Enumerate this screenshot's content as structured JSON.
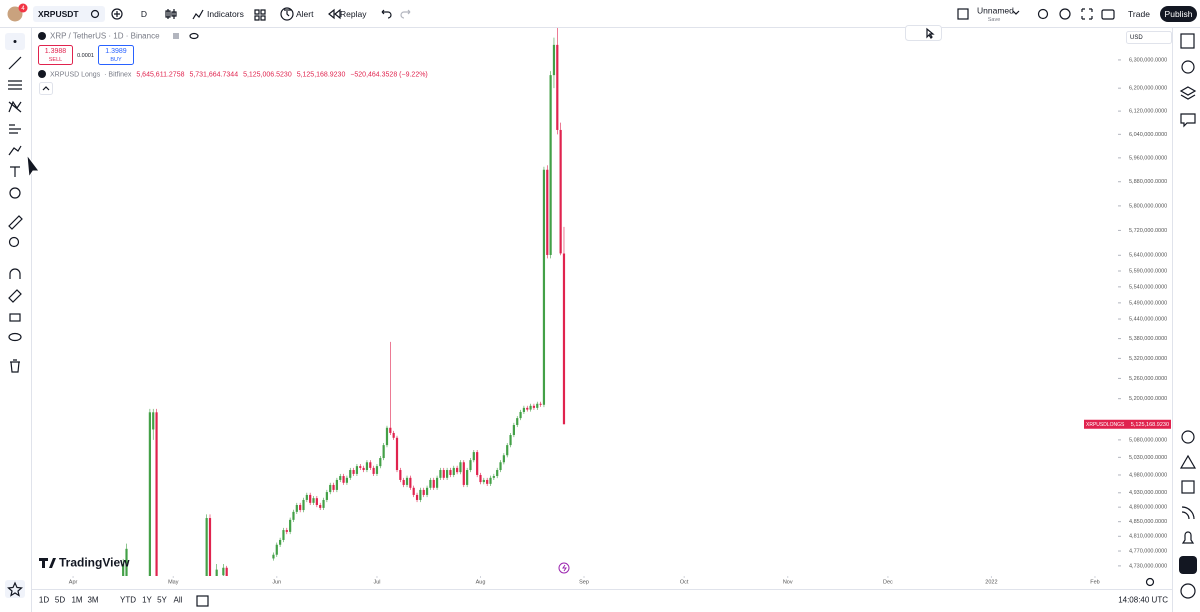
{
  "top_bar": {
    "notifications": "4",
    "symbol": "XRPUSDT",
    "interval": "D",
    "indicators": "Indicators",
    "alert": "Alert",
    "replay": "Replay",
    "layout_name": "Unnamed",
    "save": "Save",
    "trade": "Trade",
    "publish": "Publish"
  },
  "chart_legend": {
    "main": "XRP / TetherUS · 1D · Binance",
    "sell_price": "1.3988",
    "sell": "SELL",
    "spread": "0.0001",
    "buy_price": "1.3989",
    "buy": "BUY",
    "study_name": "XRPUSD Longs",
    "study_source": "· Bitfinex",
    "open": "5,645,611.2758",
    "high": "5,731,664.7344",
    "low": "5,125,006.5230",
    "close": "5,125,168.9230",
    "change": "−520,464.3528 (−9.22%)"
  },
  "price_axis": {
    "currency": "USD"
  },
  "watermark": "TradingView",
  "bottom_bar": {
    "ranges": [
      "1D",
      "5D",
      "1M",
      "3M",
      "YTD",
      "1Y",
      "5Y",
      "All"
    ],
    "clock": "14:08:40 UTC"
  },
  "chart_data": {
    "type": "candlestick",
    "log_scale": true,
    "grid": false,
    "up_color": "#43a047",
    "down_color": "#e0234e",
    "price_tag": "XRPUSDLONGS",
    "xlim": [
      78.7,
      403.9
    ],
    "xticks": [
      {
        "value": 91,
        "label": "Apr"
      },
      {
        "value": 121,
        "label": "May"
      },
      {
        "value": 152,
        "label": "Jun"
      },
      {
        "value": 182,
        "label": "Jul"
      },
      {
        "value": 213,
        "label": "Aug"
      },
      {
        "value": 244,
        "label": "Sep"
      },
      {
        "value": 274,
        "label": "Oct"
      },
      {
        "value": 305,
        "label": "Nov"
      },
      {
        "value": 335,
        "label": "Dec"
      },
      {
        "value": 366,
        "label": "2022"
      },
      {
        "value": 397,
        "label": "Feb"
      }
    ],
    "ylim": [
      4703000,
      6415000
    ],
    "yticks": [
      {
        "value": 6300000,
        "label": "6,300,000.0000"
      },
      {
        "value": 6200000,
        "label": "6,200,000.0000"
      },
      {
        "value": 6120000,
        "label": "6,120,000.0000"
      },
      {
        "value": 6040000,
        "label": "6,040,000.0000"
      },
      {
        "value": 5960000,
        "label": "5,960,000.0000"
      },
      {
        "value": 5880000,
        "label": "5,880,000.0000"
      },
      {
        "value": 5800000,
        "label": "5,800,000.0000"
      },
      {
        "value": 5720000,
        "label": "5,720,000.0000"
      },
      {
        "value": 5640000,
        "label": "5,640,000.0000"
      },
      {
        "value": 5590000,
        "label": "5,590,000.0000"
      },
      {
        "value": 5540000,
        "label": "5,540,000.0000"
      },
      {
        "value": 5490000,
        "label": "5,490,000.0000"
      },
      {
        "value": 5440000,
        "label": "5,440,000.0000"
      },
      {
        "value": 5380000,
        "label": "5,380,000.0000"
      },
      {
        "value": 5320000,
        "label": "5,320,000.0000"
      },
      {
        "value": 5260000,
        "label": "5,260,000.0000"
      },
      {
        "value": 5200000,
        "label": "5,200,000.0000"
      },
      {
        "value": 5080000,
        "label": "5,080,000.0000"
      },
      {
        "value": 5030000,
        "label": "5,030,000.0000"
      },
      {
        "value": 4980000,
        "label": "4,980,000.0000"
      },
      {
        "value": 4930000,
        "label": "4,930,000.0000"
      },
      {
        "value": 4890000,
        "label": "4,890,000.0000"
      },
      {
        "value": 4850000,
        "label": "4,850,000.0000"
      },
      {
        "value": 4810000,
        "label": "4,810,000.0000"
      },
      {
        "value": 4770000,
        "label": "4,770,000.0000"
      },
      {
        "value": 4730000,
        "label": "4,730,000.0000"
      }
    ],
    "x": [
      106,
      107,
      114,
      115,
      116,
      131,
      132,
      134,
      136,
      137,
      151,
      152,
      153,
      154,
      155,
      156,
      157,
      158,
      159,
      160,
      161,
      162,
      163,
      164,
      165,
      166,
      167,
      168,
      169,
      170,
      171,
      172,
      173,
      174,
      175,
      176,
      177,
      178,
      179,
      180,
      181,
      182,
      183,
      184,
      185,
      186,
      187,
      188,
      189,
      190,
      191,
      192,
      193,
      194,
      195,
      196,
      197,
      198,
      199,
      200,
      201,
      202,
      203,
      204,
      205,
      206,
      207,
      208,
      209,
      210,
      211,
      212,
      213,
      214,
      215,
      216,
      217,
      218,
      219,
      220,
      221,
      222,
      223,
      224,
      225,
      226,
      227,
      228,
      229,
      230,
      231,
      232,
      233,
      234,
      235,
      236,
      237,
      238
    ],
    "open": [
      4640000,
      4650000,
      4650000,
      5110000,
      5160000,
      4650000,
      4860000,
      4700000,
      4705000,
      4725000,
      4750000,
      4760000,
      4787000,
      4800000,
      4827000,
      4822000,
      4855000,
      4877000,
      4896000,
      4882000,
      4910000,
      4924000,
      4902000,
      4915000,
      4896000,
      4888000,
      4910000,
      4932000,
      4952000,
      4938000,
      4966000,
      4977000,
      4958000,
      4972000,
      4994000,
      4983000,
      5005000,
      5000000,
      4994000,
      5016000,
      5000000,
      4983000,
      5005000,
      5028000,
      5065000,
      5115000,
      5100000,
      5086000,
      4994000,
      4966000,
      4952000,
      4972000,
      4944000,
      4924000,
      4910000,
      4938000,
      4924000,
      4944000,
      4966000,
      4944000,
      4972000,
      4994000,
      4972000,
      4994000,
      4980000,
      5000000,
      4988000,
      5016000,
      4952000,
      4994000,
      5022000,
      5045000,
      4980000,
      4960000,
      4966000,
      4955000,
      4972000,
      4977000,
      4994000,
      5016000,
      5036000,
      5065000,
      5094000,
      5123000,
      5143000,
      5161000,
      5173000,
      5168000,
      5179000,
      5173000,
      5185000,
      5182000,
      5920000,
      5641000,
      6246000,
      6354000,
      6055000,
      5645611.2758
    ],
    "high": [
      4749000,
      4790000,
      5170000,
      5170000,
      5170000,
      4870000,
      4870000,
      4735000,
      4735000,
      4730000,
      4766000,
      4793000,
      4806000,
      4833000,
      4833000,
      4861000,
      4883000,
      4902000,
      4902000,
      4916000,
      4930000,
      4930000,
      4921000,
      4921000,
      4902000,
      4916000,
      4938000,
      4958000,
      4958000,
      4972000,
      4983000,
      4983000,
      4978000,
      5000000,
      5000000,
      5011000,
      5011000,
      5006000,
      5022000,
      5022000,
      5006000,
      5011000,
      5034000,
      5071000,
      5121000,
      5370000,
      5106000,
      5092000,
      5000000,
      4972000,
      4978000,
      4978000,
      4950000,
      4930000,
      4944000,
      4944000,
      4950000,
      4972000,
      4972000,
      4978000,
      5000000,
      5000000,
      5000000,
      5000000,
      5006000,
      5006000,
      5022000,
      5022000,
      5000000,
      5028000,
      5051000,
      5051000,
      4986000,
      4972000,
      4972000,
      4978000,
      4983000,
      5000000,
      5022000,
      5042000,
      5071000,
      5100000,
      5129000,
      5149000,
      5167000,
      5179000,
      5179000,
      5185000,
      5185000,
      5191000,
      5191000,
      5930000,
      5935000,
      6260000,
      6380000,
      6415000,
      6080000,
      5731664.7344
    ],
    "low": [
      4630000,
      4645000,
      4640000,
      5080000,
      4630000,
      4640000,
      4640000,
      4690000,
      4700000,
      4690000,
      4744000,
      4754000,
      4781000,
      4794000,
      4816000,
      4816000,
      4849000,
      4871000,
      4876000,
      4876000,
      4904000,
      4896000,
      4896000,
      4890000,
      4882000,
      4882000,
      4904000,
      4926000,
      4932000,
      4932000,
      4960000,
      4952000,
      4952000,
      4966000,
      4977000,
      4977000,
      4994000,
      4988000,
      4988000,
      4994000,
      4977000,
      4977000,
      4999000,
      5022000,
      5059000,
      5094000,
      5080000,
      4988000,
      4960000,
      4946000,
      4946000,
      4938000,
      4918000,
      4904000,
      4904000,
      4918000,
      4918000,
      4938000,
      4938000,
      4938000,
      4966000,
      4966000,
      4966000,
      4974000,
      4974000,
      4982000,
      4982000,
      4946000,
      4946000,
      4988000,
      5016000,
      4974000,
      4954000,
      4954000,
      4949000,
      4949000,
      4966000,
      4971000,
      4988000,
      5010000,
      5030000,
      5059000,
      5088000,
      5117000,
      5137000,
      5155000,
      5162000,
      5162000,
      5167000,
      5167000,
      5176000,
      5175000,
      5630000,
      5630000,
      6200000,
      6040000,
      5640000,
      5125006.523
    ],
    "close": [
      4735000,
      4776000,
      5160000,
      5160000,
      4640000,
      4860000,
      4650000,
      4720000,
      4725000,
      4700000,
      4760000,
      4787000,
      4800000,
      4827000,
      4822000,
      4855000,
      4877000,
      4896000,
      4882000,
      4910000,
      4924000,
      4902000,
      4915000,
      4896000,
      4888000,
      4910000,
      4932000,
      4952000,
      4938000,
      4966000,
      4977000,
      4958000,
      4972000,
      4994000,
      4983000,
      5005000,
      5000000,
      4994000,
      5016000,
      5000000,
      4983000,
      5005000,
      5028000,
      5065000,
      5115000,
      5100000,
      5086000,
      4994000,
      4966000,
      4952000,
      4972000,
      4944000,
      4924000,
      4910000,
      4938000,
      4924000,
      4944000,
      4966000,
      4944000,
      4972000,
      4994000,
      4972000,
      4994000,
      4980000,
      5000000,
      4988000,
      5016000,
      4952000,
      4994000,
      5022000,
      5045000,
      4980000,
      4960000,
      4966000,
      4955000,
      4972000,
      4977000,
      4994000,
      5016000,
      5036000,
      5065000,
      5094000,
      5123000,
      5143000,
      5161000,
      5173000,
      5168000,
      5179000,
      5173000,
      5185000,
      5182000,
      5920000,
      5641000,
      6246000,
      6354000,
      6055000,
      5646000,
      5125168.923
    ]
  }
}
